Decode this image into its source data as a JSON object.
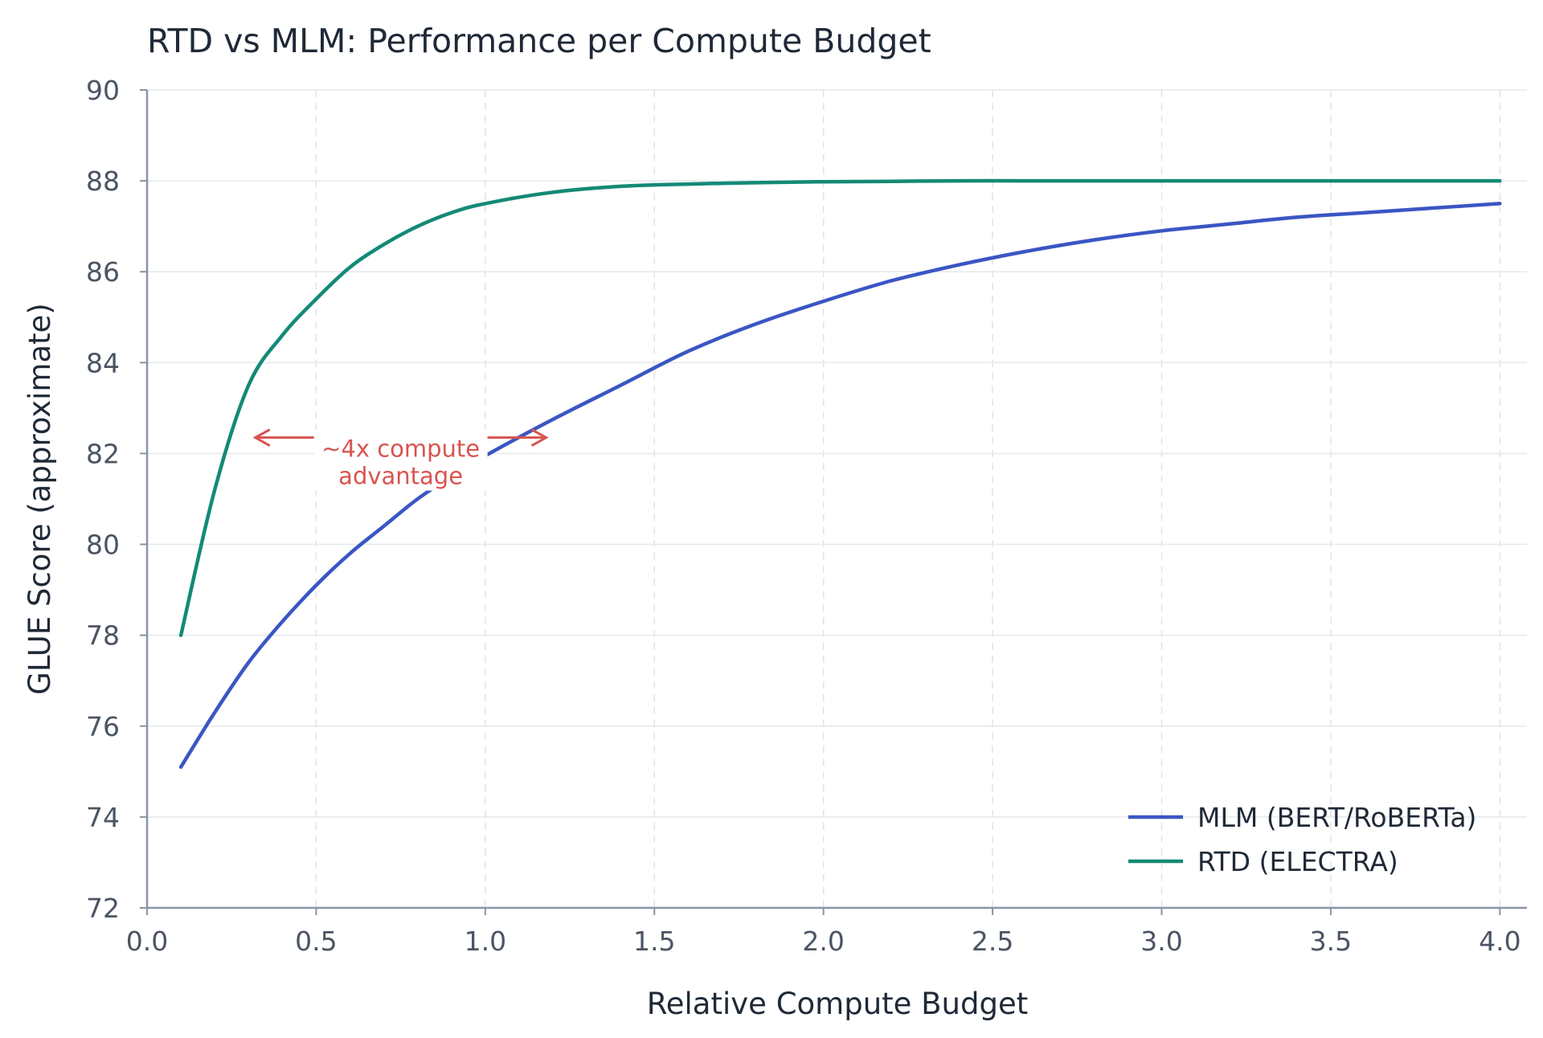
{
  "chart_data": {
    "type": "line",
    "title": "RTD vs MLM: Performance per Compute Budget",
    "xlabel": "Relative Compute Budget",
    "ylabel": "GLUE Score (approximate)",
    "xlim": [
      0.0,
      4.08
    ],
    "ylim": [
      72,
      90
    ],
    "xticks": [
      "0.0",
      "0.5",
      "1.0",
      "1.5",
      "2.0",
      "2.5",
      "3.0",
      "3.5",
      "4.0"
    ],
    "yticks": [
      "72",
      "74",
      "76",
      "78",
      "80",
      "82",
      "84",
      "86",
      "88",
      "90"
    ],
    "grid": true,
    "legend_position": "bottom-right",
    "x": [
      0.1,
      0.2,
      0.3,
      0.4,
      0.5,
      0.6,
      0.7,
      0.8,
      0.9,
      1.0,
      1.2,
      1.4,
      1.6,
      1.8,
      2.0,
      2.2,
      2.4,
      2.6,
      2.8,
      3.0,
      3.2,
      3.4,
      3.6,
      3.8,
      4.0
    ],
    "series": [
      {
        "name": "MLM (BERT/RoBERTa)",
        "color": "#3a56c4",
        "values": [
          75.1,
          76.3,
          77.4,
          78.3,
          79.1,
          79.8,
          80.4,
          81.0,
          81.5,
          81.95,
          82.75,
          83.5,
          84.25,
          84.85,
          85.35,
          85.8,
          86.15,
          86.45,
          86.7,
          86.9,
          87.05,
          87.2,
          87.3,
          87.4,
          87.5
        ]
      },
      {
        "name": "RTD (ELECTRA)",
        "color": "#138a76",
        "values": [
          78.0,
          81.2,
          83.5,
          84.6,
          85.4,
          86.1,
          86.6,
          87.0,
          87.3,
          87.5,
          87.75,
          87.88,
          87.93,
          87.96,
          87.98,
          87.99,
          88.0,
          88.0,
          88.0,
          88.0,
          88.0,
          88.0,
          88.0,
          88.0,
          88.0
        ]
      }
    ],
    "annotation": {
      "line1": "~4x compute",
      "line2": "advantage",
      "color": "#d9534f",
      "arrow_from_x": 0.32,
      "arrow_to_x": 1.18,
      "arrow_y": 82.35
    }
  }
}
